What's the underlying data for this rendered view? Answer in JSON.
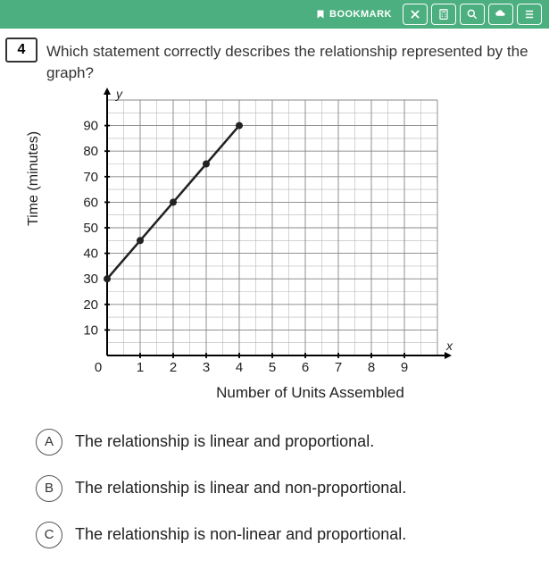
{
  "toolbar": {
    "bookmark_label": "BOOKMARK",
    "bg_color": "#4caf7f"
  },
  "question": {
    "number": "4",
    "text": "Which statement correctly describes the relationship represented by the graph?"
  },
  "chart": {
    "type": "line",
    "y_label": "Time (minutes)",
    "x_label": "Number of Units Assembled",
    "x_axis_letter": "x",
    "y_axis_letter": "y",
    "xlim": [
      0,
      10
    ],
    "ylim": [
      0,
      100
    ],
    "xtick_step": 1,
    "ytick_step": 10,
    "x_ticks": [
      "0",
      "1",
      "2",
      "3",
      "4",
      "5",
      "6",
      "7",
      "8",
      "9"
    ],
    "y_ticks": [
      "10",
      "20",
      "30",
      "40",
      "50",
      "60",
      "70",
      "80",
      "90"
    ],
    "points": [
      {
        "x": 0,
        "y": 30
      },
      {
        "x": 1,
        "y": 45
      },
      {
        "x": 2,
        "y": 60
      },
      {
        "x": 3,
        "y": 75
      },
      {
        "x": 4,
        "y": 90
      }
    ],
    "line_color": "#222222",
    "line_width": 2.5,
    "marker_color": "#222222",
    "marker_radius": 4,
    "grid_minor_color": "#b8b8b8",
    "grid_major_color": "#888888",
    "axis_color": "#000000",
    "background_color": "#ffffff",
    "tick_fontsize": 15,
    "label_fontsize": 16
  },
  "answers": [
    {
      "letter": "A",
      "text": "The relationship is linear and proportional."
    },
    {
      "letter": "B",
      "text": "The relationship is linear and non-proportional."
    },
    {
      "letter": "C",
      "text": "The relationship is non-linear and proportional."
    }
  ]
}
